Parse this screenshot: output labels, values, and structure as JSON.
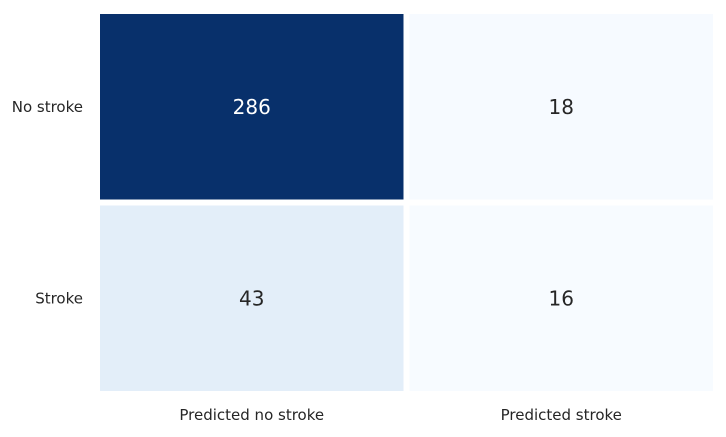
{
  "chart_data": {
    "type": "heatmap",
    "title": "",
    "xlabel": "",
    "ylabel": "",
    "x_categories": [
      "Predicted no stroke",
      "Predicted stroke"
    ],
    "y_categories": [
      "No stroke",
      "Stroke"
    ],
    "values": [
      [
        286,
        18
      ],
      [
        43,
        16
      ]
    ],
    "colormap": "Blues",
    "color_low": "#f7fbff",
    "color_high": "#08306b",
    "annotation_color_dark_cell": "#ffffff",
    "annotation_color_light_cell": "#262626",
    "cell_separator_color": "#ffffff",
    "colorbar": false,
    "grid": false
  }
}
